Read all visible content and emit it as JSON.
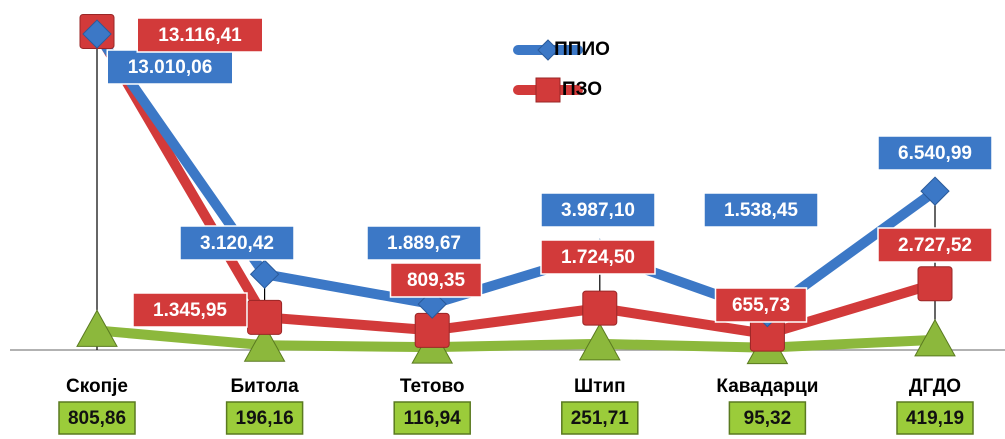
{
  "chart_data": {
    "type": "line",
    "categories": [
      "Скопје",
      "Битола",
      "Тетово",
      "Штип",
      "Кавадарци",
      "ДГДО"
    ],
    "ylim": [
      0,
      14000
    ],
    "series": [
      {
        "name": "ППИО",
        "color": "#3c78c6",
        "values": [
          13010.06,
          3120.42,
          1889.67,
          3987.1,
          1538.45,
          6540.99
        ],
        "value_labels": [
          "13.010,06",
          "3.120,42",
          "1.889,67",
          "3.987,10",
          "1.538,45",
          "6.540,99"
        ]
      },
      {
        "name": "ПЗО",
        "color": "#d23a3a",
        "values": [
          13116.41,
          1345.95,
          809.35,
          1724.5,
          655.73,
          2727.52
        ],
        "value_labels": [
          "13.116,41",
          "1.345,95",
          "809,35",
          "1.724,50",
          "655,73",
          "2.727,52"
        ]
      },
      {
        "color": "#8cb83c",
        "values": [
          805.86,
          196.16,
          116.94,
          251.71,
          95.32,
          419.19
        ],
        "value_labels": [
          "805,86",
          "196,16",
          "116,94",
          "251,71",
          "95,32",
          "419,19"
        ]
      }
    ]
  }
}
